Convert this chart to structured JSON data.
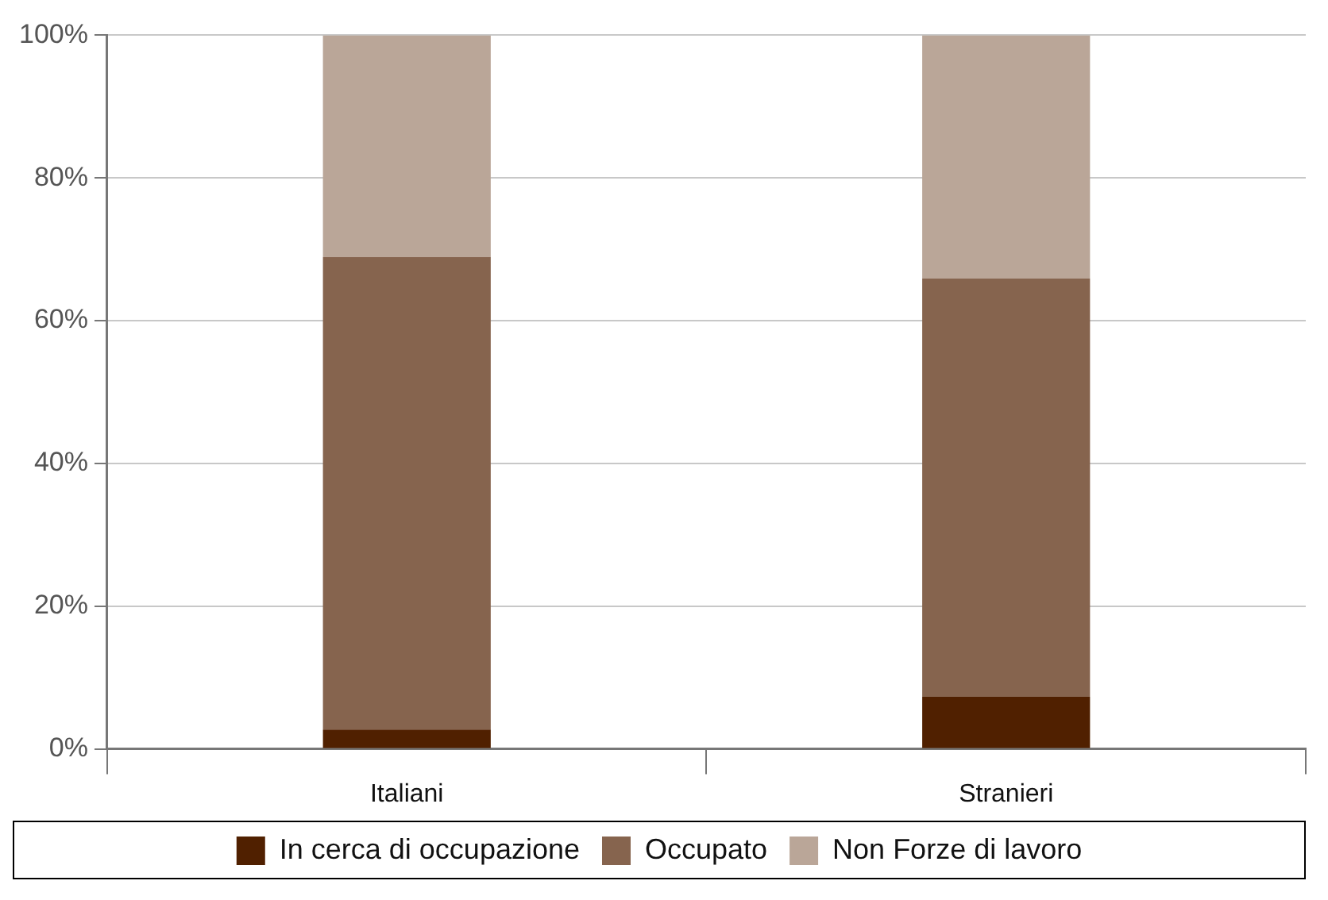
{
  "chart_data": {
    "type": "bar",
    "stacked": true,
    "categories": [
      "Italiani",
      "Stranieri"
    ],
    "series": [
      {
        "name": "In cerca di occupazione",
        "color": "#502000",
        "values": [
          2.7,
          7.3
        ]
      },
      {
        "name": "Occupato",
        "color": "#86644e",
        "values": [
          66.2,
          58.6
        ]
      },
      {
        "name": "Non Forze di lavoro",
        "color": "#baa698",
        "values": [
          31.1,
          34.1
        ]
      }
    ],
    "ylim": [
      0,
      100
    ],
    "yticks": [
      {
        "value": 0,
        "label": "0%"
      },
      {
        "value": 20,
        "label": "20%"
      },
      {
        "value": 40,
        "label": "40%"
      },
      {
        "value": 60,
        "label": "60%"
      },
      {
        "value": 80,
        "label": "80%"
      },
      {
        "value": 100,
        "label": "100%"
      }
    ],
    "grid": "y",
    "legend": "bottom"
  }
}
